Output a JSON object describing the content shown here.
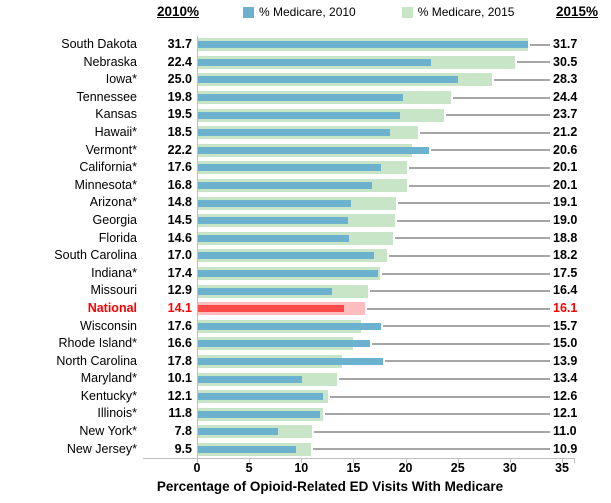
{
  "header": {
    "left_col_label": "2010%",
    "right_col_label": "2015%"
  },
  "legend": {
    "items": [
      {
        "label": "% Medicare, 2010",
        "color": "#6CB1CE"
      },
      {
        "label": "% Medicare, 2015",
        "color": "#C9E5C8"
      }
    ]
  },
  "colors": {
    "bar_2010": "#6CB1CE",
    "bar_2015": "#C9E5C8",
    "bar_2010_highlight": "#FC4A4A",
    "bar_2015_highlight": "#FFBDC0",
    "highlight_text": "#FF0000",
    "leader_line": "#A6A6A6",
    "axis_line": "#BFBFBF"
  },
  "chart_data": {
    "type": "bar",
    "orientation": "horizontal",
    "title": "",
    "xlabel": "Percentage of Opioid-Related ED Visits With Medicare",
    "xlim": [
      0,
      35
    ],
    "xticks": [
      0,
      5,
      10,
      15,
      20,
      25,
      30,
      35
    ],
    "grid": false,
    "legend_position": "top",
    "series_names": [
      "% Medicare, 2010",
      "% Medicare, 2015"
    ],
    "rows": [
      {
        "label": "South Dakota",
        "v2010": 31.7,
        "v2015": 31.7,
        "highlight": false
      },
      {
        "label": "Nebraska",
        "v2010": 22.4,
        "v2015": 30.5,
        "highlight": false
      },
      {
        "label": "Iowa*",
        "v2010": 25.0,
        "v2015": 28.3,
        "highlight": false
      },
      {
        "label": "Tennessee",
        "v2010": 19.8,
        "v2015": 24.4,
        "highlight": false
      },
      {
        "label": "Kansas",
        "v2010": 19.5,
        "v2015": 23.7,
        "highlight": false
      },
      {
        "label": "Hawaii*",
        "v2010": 18.5,
        "v2015": 21.2,
        "highlight": false
      },
      {
        "label": "Vermont*",
        "v2010": 22.2,
        "v2015": 20.6,
        "highlight": false
      },
      {
        "label": "California*",
        "v2010": 17.6,
        "v2015": 20.1,
        "highlight": false
      },
      {
        "label": "Minnesota*",
        "v2010": 16.8,
        "v2015": 20.1,
        "highlight": false
      },
      {
        "label": "Arizona*",
        "v2010": 14.8,
        "v2015": 19.1,
        "highlight": false
      },
      {
        "label": "Georgia",
        "v2010": 14.5,
        "v2015": 19.0,
        "highlight": false
      },
      {
        "label": "Florida",
        "v2010": 14.6,
        "v2015": 18.8,
        "highlight": false
      },
      {
        "label": "South Carolina",
        "v2010": 17.0,
        "v2015": 18.2,
        "highlight": false
      },
      {
        "label": "Indiana*",
        "v2010": 17.4,
        "v2015": 17.5,
        "highlight": false
      },
      {
        "label": "Missouri",
        "v2010": 12.9,
        "v2015": 16.4,
        "highlight": false
      },
      {
        "label": "National",
        "v2010": 14.1,
        "v2015": 16.1,
        "highlight": true
      },
      {
        "label": "Wisconsin",
        "v2010": 17.6,
        "v2015": 15.7,
        "highlight": false
      },
      {
        "label": "Rhode Island*",
        "v2010": 16.6,
        "v2015": 15.0,
        "highlight": false
      },
      {
        "label": "North Carolina",
        "v2010": 17.8,
        "v2015": 13.9,
        "highlight": false
      },
      {
        "label": "Maryland*",
        "v2010": 10.1,
        "v2015": 13.4,
        "highlight": false
      },
      {
        "label": "Kentucky*",
        "v2010": 12.1,
        "v2015": 12.6,
        "highlight": false
      },
      {
        "label": "Illinois*",
        "v2010": 11.8,
        "v2015": 12.1,
        "highlight": false
      },
      {
        "label": "New York*",
        "v2010": 7.8,
        "v2015": 11.0,
        "highlight": false
      },
      {
        "label": "New Jersey*",
        "v2010": 9.5,
        "v2015": 10.9,
        "highlight": false
      }
    ]
  }
}
